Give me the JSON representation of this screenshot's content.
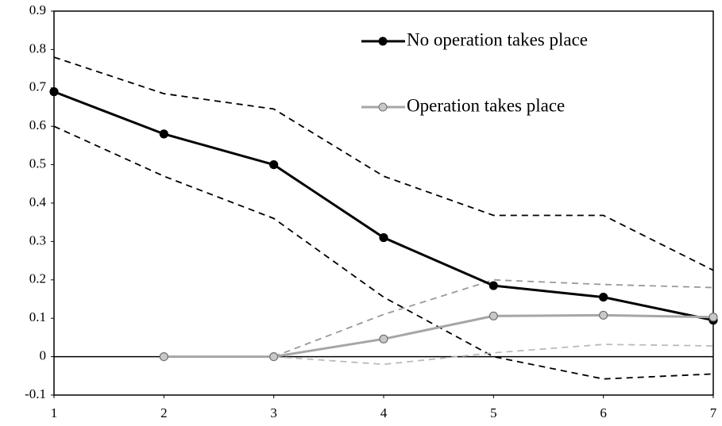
{
  "chart_data": {
    "type": "line",
    "x": [
      1,
      2,
      3,
      4,
      5,
      6,
      7
    ],
    "xlim": [
      1,
      7
    ],
    "xticks": [
      1,
      2,
      3,
      4,
      5,
      6,
      7
    ],
    "ylim": [
      -0.1,
      0.9
    ],
    "yticks": [
      -0.1,
      0,
      0.1,
      0.2,
      0.3,
      0.4,
      0.5,
      0.6,
      0.7,
      0.8,
      0.9
    ],
    "grid": false,
    "series": [
      {
        "color": "#000000",
        "dashed": true,
        "marker": false,
        "values": [
          0.78,
          0.685,
          0.645,
          0.47,
          0.368,
          0.368,
          0.225
        ]
      },
      {
        "color": "#000000",
        "dashed": true,
        "marker": false,
        "values": [
          0.6,
          0.47,
          0.36,
          0.155,
          0.0,
          -0.058,
          -0.045
        ]
      },
      {
        "color": "#999999",
        "dashed": true,
        "marker": false,
        "values": [
          null,
          null,
          0,
          0.11,
          0.2,
          0.188,
          0.18
        ]
      },
      {
        "color": "#bbbbbb",
        "dashed": true,
        "marker": false,
        "values": [
          null,
          null,
          0,
          -0.02,
          0.01,
          0.032,
          0.028
        ]
      },
      {
        "name": "No operation takes place",
        "color": "#000000",
        "dashed": false,
        "marker": true,
        "marker_fill": "#000000",
        "marker_edge": "#000000",
        "values": [
          0.69,
          0.58,
          0.5,
          0.31,
          0.185,
          0.155,
          0.095
        ]
      },
      {
        "name": "Operation takes place",
        "color": "#a6a6a6",
        "dashed": false,
        "marker": true,
        "marker_fill": "#c8c8c8",
        "marker_edge": "#707070",
        "values": [
          null,
          0,
          0,
          0.046,
          0.106,
          0.108,
          0.103
        ]
      }
    ]
  }
}
